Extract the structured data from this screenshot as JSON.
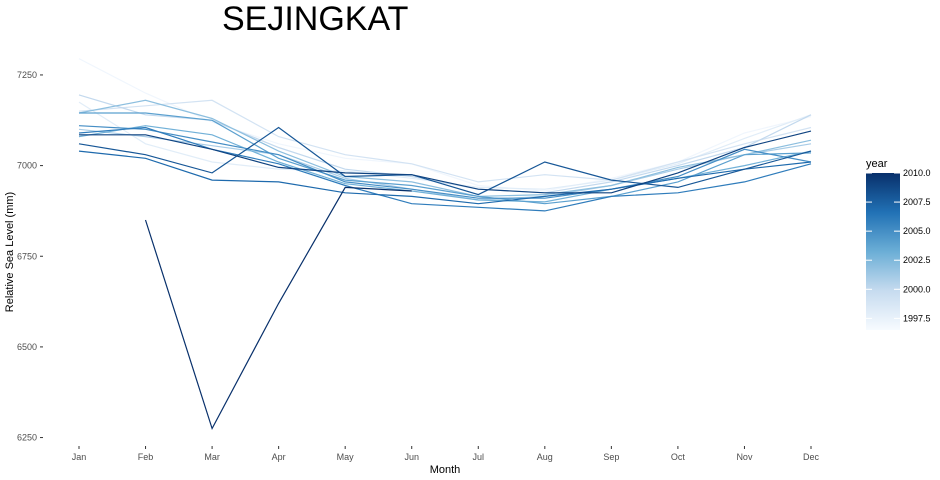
{
  "chart_data": {
    "type": "line",
    "title": "SEJINGKAT",
    "xlabel": "Month",
    "ylabel": "Relative Sea Level (mm)",
    "categories": [
      "Jan",
      "Feb",
      "Mar",
      "Apr",
      "May",
      "Jun",
      "Jul",
      "Aug",
      "Sep",
      "Oct",
      "Nov",
      "Dec"
    ],
    "yticks": [
      6250,
      6500,
      6750,
      7000,
      7250
    ],
    "yticks_labels": [
      "6250",
      "6500",
      "6750",
      "7000",
      "7250"
    ],
    "ylim": [
      6235,
      7305
    ],
    "grid": false,
    "legend": {
      "title": "year",
      "position": "right",
      "type": "colorbar",
      "range": [
        1996.5,
        2010
      ],
      "ticks": [
        1997.5,
        2000.0,
        2002.5,
        2005.0,
        2007.5,
        2010.0
      ],
      "tick_labels": [
        "1997.5",
        "2000.0",
        "2002.5",
        "2005.0",
        "2007.5",
        "2010.0"
      ],
      "color_low": "#f7fbff",
      "color_high": "#08306b"
    },
    "series": [
      {
        "year": 1997,
        "values": [
          7295,
          7200,
          7120,
          7060,
          7020,
          7005,
          6945,
          6930,
          6965,
          7010,
          7090,
          7135
        ]
      },
      {
        "year": 1998,
        "values": [
          7175,
          7060,
          7010,
          6990,
          6985,
          6965,
          6940,
          6935,
          6960,
          7005,
          7075,
          7140
        ]
      },
      {
        "year": 1999,
        "values": [
          7150,
          7165,
          7180,
          7080,
          7030,
          7005,
          6955,
          6975,
          6960,
          7010,
          7060,
          7105
        ]
      },
      {
        "year": 2000,
        "values": [
          7195,
          7140,
          7125,
          7050,
          6990,
          6970,
          6935,
          6925,
          6955,
          7000,
          7050,
          7140
        ]
      },
      {
        "year": 2001,
        "values": [
          7100,
          7080,
          7055,
          7030,
          6965,
          6935,
          6905,
          6915,
          6945,
          6990,
          7030,
          7060
        ]
      },
      {
        "year": 2002,
        "values": [
          7145,
          7180,
          7130,
          7040,
          6970,
          6955,
          6915,
          6920,
          6945,
          6995,
          7030,
          7070
        ]
      },
      {
        "year": 2003,
        "values": [
          7080,
          7110,
          7085,
          7010,
          6950,
          6930,
          6905,
          6900,
          6935,
          6965,
          7000,
          7040
        ]
      },
      {
        "year": 2004,
        "values": [
          7145,
          7145,
          7125,
          7020,
          6960,
          6945,
          6915,
          6895,
          6915,
          6955,
          7030,
          7035
        ]
      },
      {
        "year": 2005,
        "values": [
          7110,
          7100,
          7065,
          7030,
          6955,
          6935,
          6910,
          6910,
          6935,
          6970,
          7045,
          7010
        ]
      },
      {
        "year": 2006,
        "values": [
          7090,
          7105,
          7045,
          7005,
          6945,
          6895,
          6885,
          6875,
          6915,
          6925,
          6955,
          7005
        ]
      },
      {
        "year": 2007,
        "values": [
          7040,
          7020,
          6960,
          6955,
          6925,
          6915,
          6895,
          6915,
          6935,
          6965,
          6990,
          7010
        ]
      },
      {
        "year": 2008,
        "values": [
          7060,
          7030,
          6980,
          7105,
          6970,
          6975,
          6920,
          7010,
          6960,
          6940,
          6990,
          7040
        ]
      },
      {
        "year": 2009,
        "values": [
          7085,
          7085,
          7045,
          6995,
          6980,
          6975,
          6935,
          6925,
          6925,
          6980,
          7050,
          7095
        ]
      },
      {
        "year": 2010,
        "values": [
          null,
          6850,
          6275,
          6620,
          6940,
          6930,
          null,
          null,
          null,
          null,
          null,
          null
        ]
      }
    ]
  }
}
